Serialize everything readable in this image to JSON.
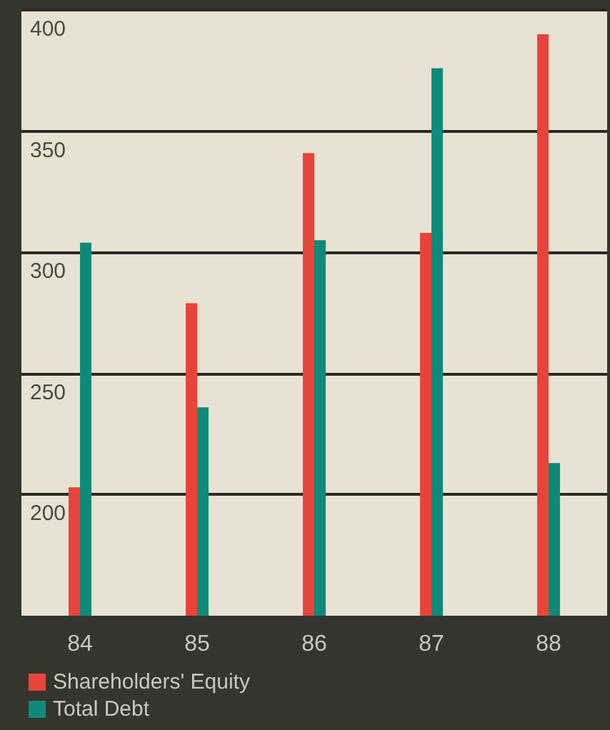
{
  "chart_data": {
    "type": "bar",
    "categories": [
      "84",
      "85",
      "86",
      "87",
      "88"
    ],
    "series": [
      {
        "name": "Shareholders' Equity",
        "color": "#e8443a",
        "values": [
          203,
          279,
          341,
          308,
          390
        ]
      },
      {
        "name": "Total Debt",
        "color": "#0e8a7a",
        "values": [
          304,
          236,
          305,
          376,
          213
        ]
      }
    ],
    "ylim": [
      150,
      400
    ],
    "yticks": [
      200,
      250,
      300,
      350,
      400
    ],
    "grid": "y",
    "legend": "bottom left"
  }
}
